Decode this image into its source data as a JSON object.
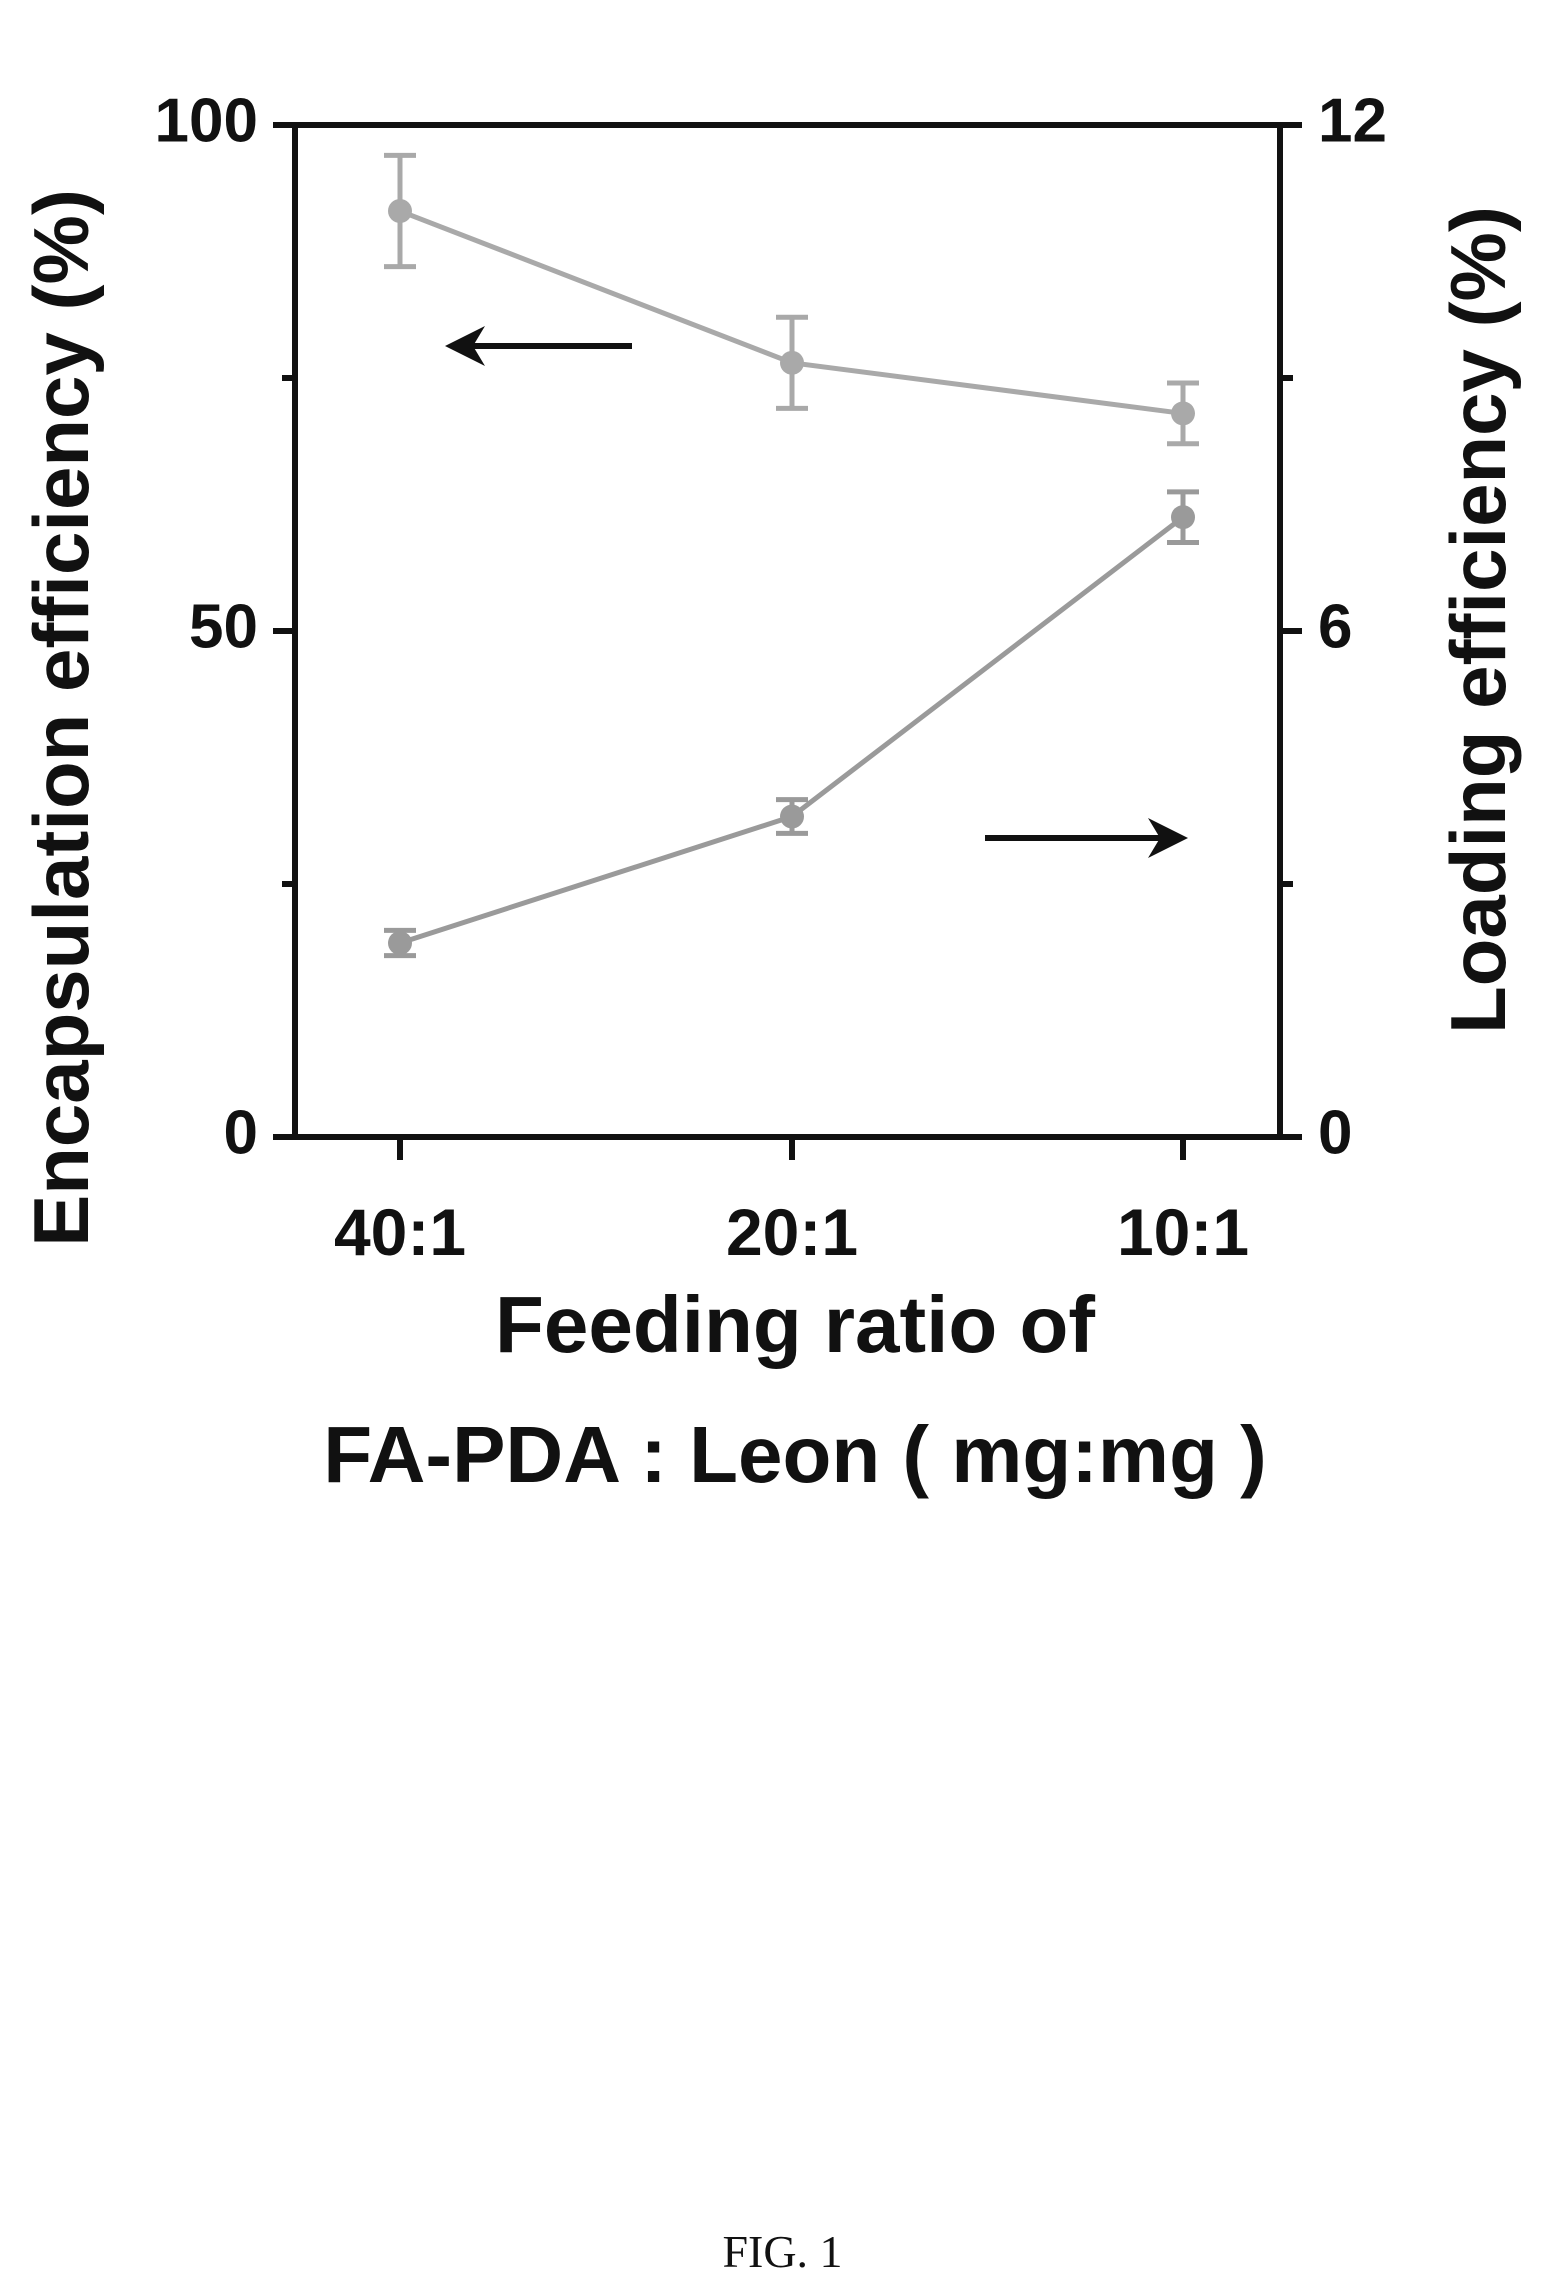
{
  "chart_data": {
    "type": "line",
    "categories": [
      "40:1",
      "20:1",
      "10:1"
    ],
    "xlabel_lines": [
      "Feeding ratio of",
      "FA-PDA : Leon (   mg:mg  )"
    ],
    "ylabel_left": "Encapsulation efficiency (%)",
    "ylabel_right": "Loading efficiency (%)",
    "ylim_left": [
      0,
      100
    ],
    "ylim_right": [
      0,
      12
    ],
    "yticks_left": [
      0,
      50,
      100
    ],
    "yticks_right": [
      0,
      6,
      12
    ],
    "series": [
      {
        "axis": "left",
        "values": [
          91.5,
          76.5,
          71.5
        ],
        "errors": [
          5.5,
          4.5,
          3.0
        ],
        "color": "#a9a9a9"
      },
      {
        "axis": "right",
        "values": [
          2.3,
          3.8,
          7.35
        ],
        "errors": [
          0.15,
          0.2,
          0.3
        ],
        "color": "#9a9a9a"
      }
    ],
    "annotations": [
      {
        "type": "arrow",
        "direction": "left",
        "refers_to": "left-axis"
      },
      {
        "type": "arrow",
        "direction": "right",
        "refers_to": "right-axis"
      }
    ]
  },
  "figure_label": "FIG. 1"
}
